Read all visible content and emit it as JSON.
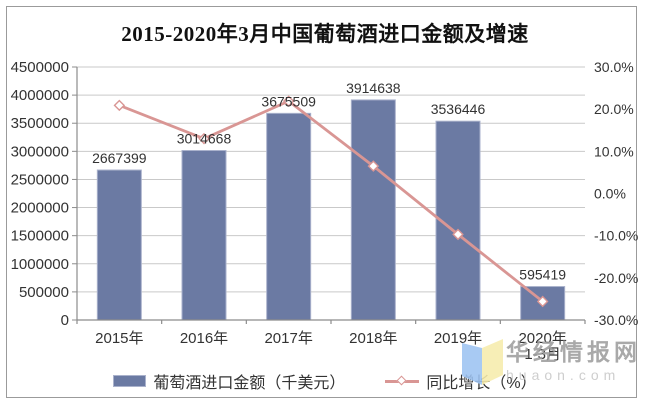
{
  "colors": {
    "bar": "#6b7aa3",
    "bar_border": "#aab2cc",
    "line": "#d99694",
    "marker_fill": "#ffffff",
    "grid": "#c9c9c9",
    "axis": "#8c8c8c",
    "frame_border": "#9b9b9b",
    "text": "#333333",
    "watermark_blue": "#9dc3f2",
    "watermark_yellow": "#f7ecac",
    "watermark_name": "#9e9e9e",
    "watermark_url": "#c8c8c8"
  },
  "chart_data": {
    "type": "bar+line combo, dual axis",
    "title": "2015-2020年3月中国葡萄酒进口金额及增速",
    "categories": [
      {
        "label": "2015年"
      },
      {
        "label": "2016年"
      },
      {
        "label": "2017年"
      },
      {
        "label": "2018年"
      },
      {
        "label": "2019年"
      },
      {
        "label": "2020年",
        "sublabel": "1-3月"
      }
    ],
    "series": [
      {
        "name": "葡萄酒进口金额（千美元）",
        "type": "bar",
        "axis": "left",
        "values": [
          2667399,
          3014668,
          3675509,
          3914638,
          3536446,
          595419
        ],
        "labels": [
          "2667399",
          "3014668",
          "3675509",
          "3914638",
          "3536446",
          "595419"
        ]
      },
      {
        "name": "同比增长（%）",
        "type": "line",
        "axis": "right",
        "marker": "open-diamond",
        "values_estimated_from_gridlines": true,
        "values": [
          20.9,
          13.0,
          21.9,
          6.5,
          -9.7,
          -25.6
        ]
      }
    ],
    "left_axis": {
      "min": 0,
      "max": 4500000,
      "step": 500000,
      "tick_labels": [
        "4500000",
        "4000000",
        "3500000",
        "3000000",
        "2500000",
        "2000000",
        "1500000",
        "1000000",
        "500000",
        "0"
      ]
    },
    "right_axis": {
      "min": -30,
      "max": 30,
      "step": 10,
      "tick_labels": [
        "30.0%",
        "20.0%",
        "10.0%",
        "0.0%",
        "-10.0%",
        "-20.0%",
        "-30.0%"
      ]
    },
    "grid": true,
    "legend_position": "bottom"
  },
  "watermark": {
    "site_name": "华经情报网",
    "site_url": "huaon.com"
  }
}
